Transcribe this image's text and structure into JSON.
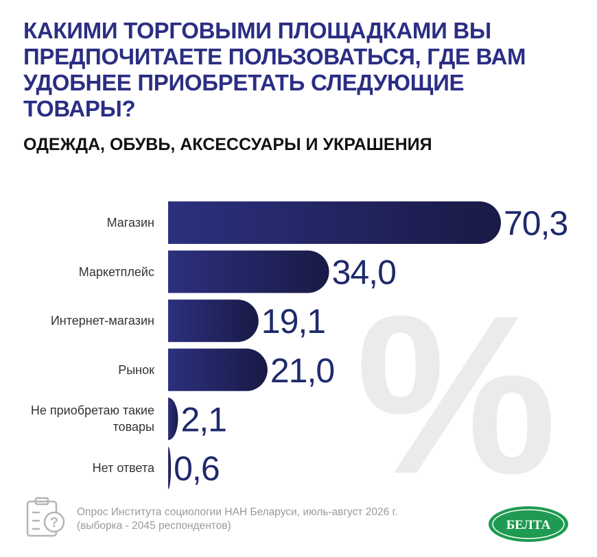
{
  "chart_data": {
    "type": "bar",
    "orientation": "horizontal",
    "title": "КАКИМИ ТОРГОВЫМИ ПЛОЩАДКАМИ ВЫ ПРЕДПОЧИТАЕТЕ ПОЛЬЗОВАТЬСЯ, ГДЕ ВАМ УДОБНЕЕ ПРИОБРЕТАТЬ СЛЕДУЮЩИЕ ТОВАРЫ?",
    "subtitle": "ОДЕЖДА, ОБУВЬ, АКСЕССУАРЫ И УКРАШЕНИЯ",
    "categories": [
      "Магазин",
      "Маркетплейс",
      "Интернет-магазин",
      "Рынок",
      "Не приобретаю такие товары",
      "Нет ответа"
    ],
    "values": [
      70.3,
      34.0,
      19.1,
      21.0,
      2.1,
      0.6
    ],
    "value_labels": [
      "70,3",
      "34,0",
      "19,1",
      "21,0",
      "2,1",
      "0,6"
    ],
    "xlim": [
      0,
      70.3
    ],
    "color": "#272a73",
    "watermark": "%",
    "note": [
      "Опрос Института социологии НАН Беларуси, июль-август 2026 г.",
      "(выборка - 2045 респондентов)"
    ],
    "logo": "БЕЛТА"
  }
}
